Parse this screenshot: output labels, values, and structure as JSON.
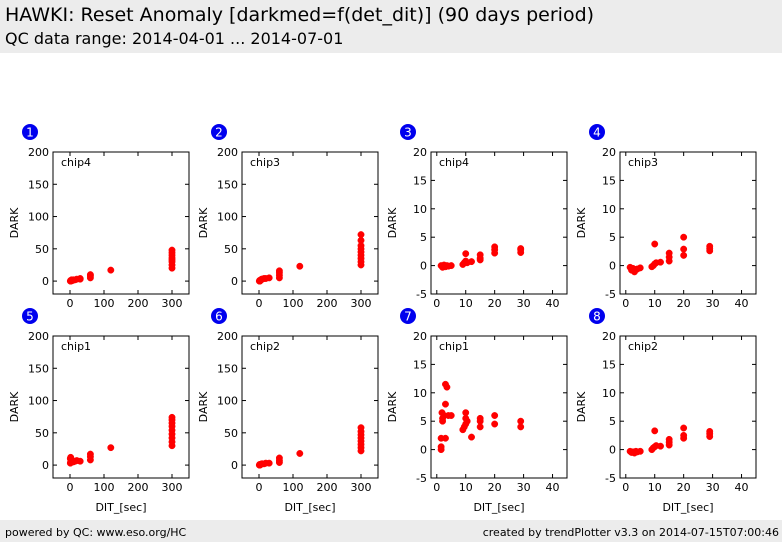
{
  "header": {
    "title": "HAWKI: Reset Anomaly [darkmed=f(det_dit)] (90 days period)",
    "subtitle": "QC data range: 2014-04-01 ... 2014-07-01"
  },
  "footer": {
    "left": "powered by QC: www.eso.org/HC",
    "right": "created by trendPlotter v3.3 on 2014-07-15T07:00:46"
  },
  "colors": {
    "marker": "#ff0000",
    "badge": "#0000ee",
    "header_bg": "#ececec"
  },
  "chart_data": [
    {
      "type": "scatter",
      "panel": "1",
      "label": "chip4",
      "xlabel": "",
      "ylabel": "DARK",
      "xlim": [
        -50,
        350
      ],
      "ylim": [
        -20,
        200
      ],
      "xticks": [
        0,
        100,
        200,
        300
      ],
      "yticks": [
        0,
        50,
        100,
        150,
        200
      ],
      "x": [
        1,
        2,
        3,
        5,
        8,
        10,
        15,
        20,
        30,
        30,
        60,
        60,
        60,
        120,
        300,
        300,
        300,
        300,
        300,
        300,
        300,
        300
      ],
      "y": [
        0,
        1,
        0,
        2,
        1,
        2,
        2,
        3,
        3,
        4,
        5,
        8,
        10,
        17,
        20,
        25,
        30,
        33,
        36,
        40,
        44,
        48
      ]
    },
    {
      "type": "scatter",
      "panel": "2",
      "label": "chip3",
      "xlabel": "",
      "ylabel": "DARK",
      "xlim": [
        -50,
        350
      ],
      "ylim": [
        -20,
        200
      ],
      "xticks": [
        0,
        100,
        200,
        300
      ],
      "yticks": [
        0,
        50,
        100,
        150,
        200
      ],
      "x": [
        1,
        2,
        3,
        5,
        8,
        10,
        15,
        20,
        30,
        60,
        60,
        60,
        60,
        120,
        300,
        300,
        300,
        300,
        300,
        300,
        300,
        300,
        300
      ],
      "y": [
        0,
        1,
        0,
        2,
        3,
        3,
        4,
        4,
        5,
        5,
        9,
        13,
        16,
        23,
        25,
        30,
        35,
        40,
        45,
        50,
        55,
        63,
        72
      ]
    },
    {
      "type": "scatter",
      "panel": "3",
      "label": "chip4",
      "xlabel": "",
      "ylabel": "DARK",
      "xlim": [
        -2,
        45
      ],
      "ylim": [
        -5,
        20
      ],
      "xticks": [
        0,
        10,
        20,
        30,
        40
      ],
      "yticks": [
        -5,
        0,
        5,
        10,
        15,
        20
      ],
      "x": [
        1.5,
        2,
        2.5,
        3,
        3.5,
        4,
        5,
        9,
        9.5,
        10,
        10,
        10.5,
        12,
        15,
        15,
        15,
        20,
        20,
        20,
        29,
        29,
        29
      ],
      "y": [
        0,
        -0.3,
        0.1,
        -0.2,
        0,
        -0.1,
        0,
        0.2,
        0.5,
        0.8,
        2.1,
        0.5,
        0.7,
        1,
        1.3,
        1.9,
        2.2,
        2.8,
        3.3,
        2.3,
        2.8,
        3
      ],
      "series_note": ""
    },
    {
      "type": "scatter",
      "panel": "4",
      "label": "chip3",
      "xlabel": "",
      "ylabel": "DARK",
      "xlim": [
        -2,
        45
      ],
      "ylim": [
        -5,
        20
      ],
      "xticks": [
        0,
        10,
        20,
        30,
        40
      ],
      "yticks": [
        -5,
        0,
        5,
        10,
        15,
        20
      ],
      "x": [
        1.5,
        2,
        2.5,
        3,
        3.5,
        4,
        5,
        9,
        9.5,
        10,
        10,
        10.5,
        12,
        15,
        15,
        15,
        20,
        20,
        20,
        29,
        29,
        29
      ],
      "y": [
        -0.3,
        -0.8,
        -0.5,
        -1.1,
        -0.7,
        -0.6,
        -0.4,
        -0.2,
        0,
        0.3,
        3.8,
        0.5,
        0.6,
        0.8,
        1.5,
        2.2,
        1.8,
        2.9,
        5,
        2.6,
        3,
        3.4
      ]
    },
    {
      "type": "scatter",
      "panel": "5",
      "label": "chip1",
      "xlabel": "DIT_[sec]",
      "ylabel": "DARK",
      "xlim": [
        -50,
        350
      ],
      "ylim": [
        -20,
        200
      ],
      "xticks": [
        0,
        100,
        200,
        300
      ],
      "yticks": [
        0,
        50,
        100,
        150,
        200
      ],
      "x": [
        1,
        1,
        2,
        2,
        3,
        5,
        8,
        10,
        15,
        20,
        30,
        60,
        60,
        60,
        120,
        300,
        300,
        300,
        300,
        300,
        300,
        300,
        300,
        300
      ],
      "y": [
        3,
        10,
        5,
        12,
        7,
        8,
        6,
        5,
        6,
        7,
        6,
        8,
        13,
        17,
        27,
        30,
        36,
        42,
        48,
        54,
        60,
        65,
        70,
        74
      ]
    },
    {
      "type": "scatter",
      "panel": "6",
      "label": "chip2",
      "xlabel": "DIT_[sec]",
      "ylabel": "DARK",
      "xlim": [
        -50,
        350
      ],
      "ylim": [
        -20,
        200
      ],
      "xticks": [
        0,
        100,
        200,
        300
      ],
      "yticks": [
        0,
        50,
        100,
        150,
        200
      ],
      "x": [
        1,
        2,
        3,
        5,
        8,
        10,
        15,
        20,
        30,
        60,
        60,
        60,
        120,
        300,
        300,
        300,
        300,
        300,
        300,
        300,
        300
      ],
      "y": [
        0,
        1,
        0,
        1,
        2,
        2,
        2,
        3,
        3,
        4,
        7,
        11,
        18,
        22,
        27,
        32,
        37,
        42,
        47,
        52,
        58
      ]
    },
    {
      "type": "scatter",
      "panel": "7",
      "label": "chip1",
      "xlabel": "DIT_[sec]",
      "ylabel": "DARK",
      "xlim": [
        -2,
        45
      ],
      "ylim": [
        -5,
        20
      ],
      "xticks": [
        0,
        10,
        20,
        30,
        40
      ],
      "yticks": [
        -5,
        0,
        5,
        10,
        15,
        20
      ],
      "x": [
        1.5,
        1.5,
        1.5,
        1.8,
        2,
        2,
        2.5,
        3,
        3,
        3,
        3.5,
        4,
        5,
        9,
        9.5,
        10,
        10,
        10,
        10.5,
        12,
        15,
        15,
        15,
        20,
        20,
        29,
        29
      ],
      "y": [
        0,
        0.5,
        2,
        6.5,
        5.5,
        5,
        6,
        2,
        8,
        11.5,
        11,
        6,
        6,
        3.5,
        4,
        4.5,
        5.5,
        6.5,
        5,
        2.2,
        4,
        5,
        5.5,
        4.5,
        6,
        4,
        5
      ]
    },
    {
      "type": "scatter",
      "panel": "8",
      "label": "chip2",
      "xlabel": "DIT_[sec]",
      "ylabel": "DARK",
      "xlim": [
        -2,
        45
      ],
      "ylim": [
        -5,
        20
      ],
      "xticks": [
        0,
        10,
        20,
        30,
        40
      ],
      "yticks": [
        -5,
        0,
        5,
        10,
        15,
        20
      ],
      "x": [
        1.5,
        2,
        2.5,
        3,
        3.5,
        4,
        5,
        9,
        9.5,
        10,
        10,
        10.5,
        12,
        15,
        15,
        15,
        20,
        20,
        20,
        29,
        29,
        29
      ],
      "y": [
        -0.3,
        -0.5,
        -0.4,
        -0.6,
        -0.3,
        -0.4,
        -0.3,
        0,
        0.3,
        0.5,
        3.3,
        0.7,
        0.6,
        0.8,
        1.3,
        1.8,
        2,
        2.5,
        3.8,
        2.3,
        2.8,
        3.2
      ]
    }
  ]
}
